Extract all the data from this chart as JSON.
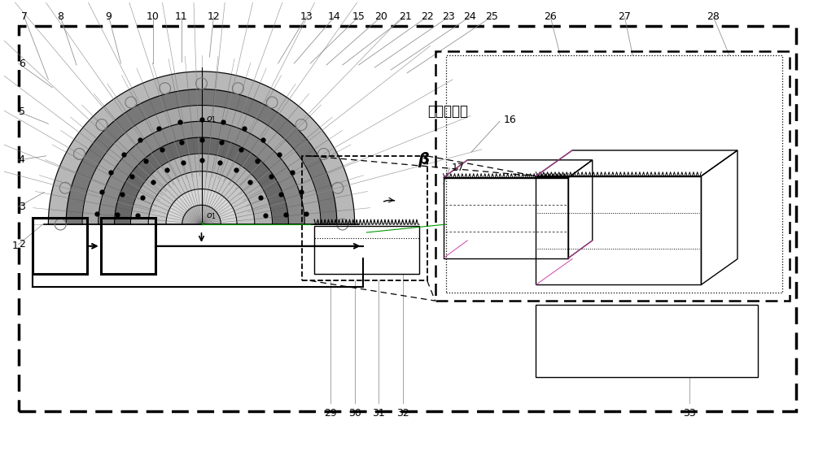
{
  "bg_color": "#ffffff",
  "chinese_text": "子午面视图",
  "beta_label": "β",
  "fig_w": 10.0,
  "fig_h": 5.66,
  "dpi": 100
}
